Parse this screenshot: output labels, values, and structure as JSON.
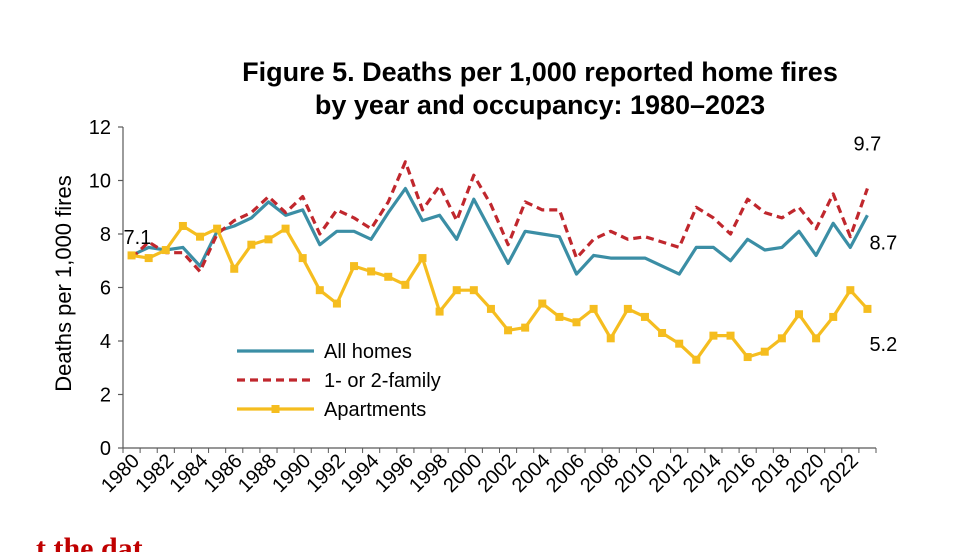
{
  "page": {
    "bottom_fragment_text": "t the dat"
  },
  "chart_data": {
    "type": "line",
    "title_line1": "Figure 5. Deaths per 1,000 reported home fires",
    "title_line2": "by year and occupancy: 1980–2023",
    "ylabel": "Deaths per 1,000 fires",
    "xlabel": "",
    "ylim": [
      0,
      12
    ],
    "yticks": [
      0,
      2,
      4,
      6,
      8,
      10,
      12
    ],
    "grid": false,
    "legend_position": "lower-left",
    "x": [
      1980,
      1981,
      1982,
      1983,
      1984,
      1985,
      1986,
      1987,
      1988,
      1989,
      1990,
      1991,
      1992,
      1993,
      1994,
      1995,
      1996,
      1997,
      1998,
      1999,
      2000,
      2001,
      2002,
      2003,
      2004,
      2005,
      2006,
      2007,
      2008,
      2009,
      2010,
      2011,
      2012,
      2013,
      2014,
      2015,
      2016,
      2017,
      2018,
      2019,
      2020,
      2021,
      2022,
      2023
    ],
    "xtick_labels": [
      "1980",
      "1982",
      "1984",
      "1986",
      "1988",
      "1990",
      "1992",
      "1994",
      "1996",
      "1998",
      "2000",
      "2002",
      "2004",
      "2006",
      "2008",
      "2010",
      "2012",
      "2014",
      "2016",
      "2018",
      "2020",
      "2022"
    ],
    "series": [
      {
        "name": "All homes",
        "color": "#3b8ea5",
        "style": "solid",
        "marker": "none",
        "values": [
          7.2,
          7.5,
          7.4,
          7.5,
          6.8,
          8.1,
          8.3,
          8.6,
          9.2,
          8.7,
          8.9,
          7.6,
          8.1,
          8.1,
          7.8,
          8.8,
          9.7,
          8.5,
          8.7,
          7.8,
          9.3,
          8.1,
          6.9,
          8.1,
          8.0,
          7.9,
          6.5,
          7.2,
          7.1,
          7.1,
          7.1,
          6.8,
          6.5,
          7.5,
          7.5,
          7.0,
          7.8,
          7.4,
          7.5,
          8.1,
          7.2,
          8.4,
          7.5,
          8.7
        ]
      },
      {
        "name": "1- or 2-family",
        "color": "#c0272d",
        "style": "dashed",
        "marker": "none",
        "values": [
          7.1,
          7.7,
          7.3,
          7.3,
          6.6,
          8.0,
          8.5,
          8.8,
          9.4,
          8.8,
          9.4,
          8.0,
          8.9,
          8.6,
          8.2,
          9.2,
          10.7,
          8.9,
          9.8,
          8.5,
          10.2,
          9.1,
          7.6,
          9.2,
          8.9,
          8.9,
          7.1,
          7.8,
          8.1,
          7.8,
          7.9,
          7.7,
          7.5,
          9.0,
          8.6,
          8.0,
          9.3,
          8.8,
          8.6,
          9.0,
          8.2,
          9.5,
          7.9,
          9.7
        ]
      },
      {
        "name": "Apartments",
        "color": "#f5bd1f",
        "style": "solid",
        "marker": "square",
        "values": [
          7.2,
          7.1,
          7.4,
          8.3,
          7.9,
          8.2,
          6.7,
          7.6,
          7.8,
          8.2,
          7.1,
          5.9,
          5.4,
          6.8,
          6.6,
          6.4,
          6.1,
          7.1,
          5.1,
          5.9,
          5.9,
          5.2,
          4.4,
          4.5,
          5.4,
          4.9,
          4.7,
          5.2,
          4.1,
          5.2,
          4.9,
          4.3,
          3.9,
          3.3,
          4.2,
          4.2,
          3.4,
          3.6,
          4.1,
          5.0,
          4.1,
          4.9,
          5.9,
          5.2
        ]
      }
    ],
    "annotations": [
      {
        "text": "7.1",
        "series": 1,
        "index": 0
      },
      {
        "text": "9.7",
        "series": 1,
        "index": 43
      },
      {
        "text": "8.7",
        "series": 0,
        "index": 43
      },
      {
        "text": "5.2",
        "series": 2,
        "index": 43
      }
    ]
  }
}
